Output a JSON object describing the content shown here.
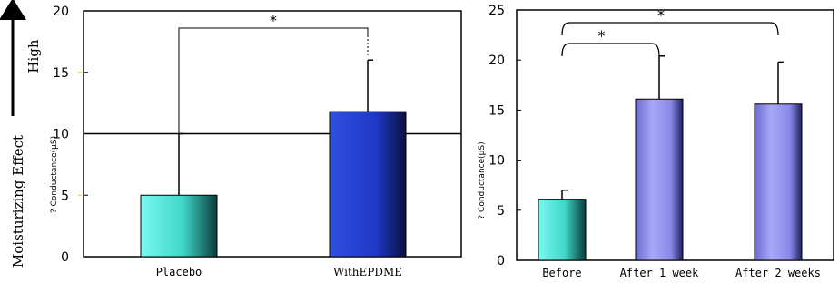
{
  "side_labels": {
    "top": "High",
    "bottom": "Moisturizing Effect"
  },
  "chart_data": [
    {
      "type": "bar",
      "categories": [
        "Placebo",
        "WithEPDME"
      ],
      "values": [
        5,
        11.8
      ],
      "errors": [
        5,
        4.2
      ],
      "ylabel": "? Conductance(μS)",
      "ylim": [
        0,
        20
      ],
      "yticks": [
        "0",
        "5",
        "10",
        "15",
        "20"
      ],
      "reference_line": 10,
      "significance": [
        {
          "from": 0,
          "to": 1,
          "label": "*"
        }
      ],
      "bar_colors": [
        "#5ef0e0",
        "#2848e0"
      ]
    },
    {
      "type": "bar",
      "categories": [
        "Before",
        "After 1 week",
        "After 2 weeks"
      ],
      "values": [
        6.1,
        16.1,
        15.6
      ],
      "errors": [
        0.9,
        4.3,
        4.2
      ],
      "ylabel": "? Conductance(μS)",
      "ylim": [
        0,
        25
      ],
      "yticks": [
        "0",
        "5",
        "10",
        "15",
        "20",
        "25"
      ],
      "significance": [
        {
          "from": 0,
          "to": 1,
          "label": "*"
        },
        {
          "from": 0,
          "to": 2,
          "label": "*"
        }
      ],
      "bar_colors": [
        "#5ef0e0",
        "#a0a0f8",
        "#a0a0f8"
      ]
    }
  ]
}
